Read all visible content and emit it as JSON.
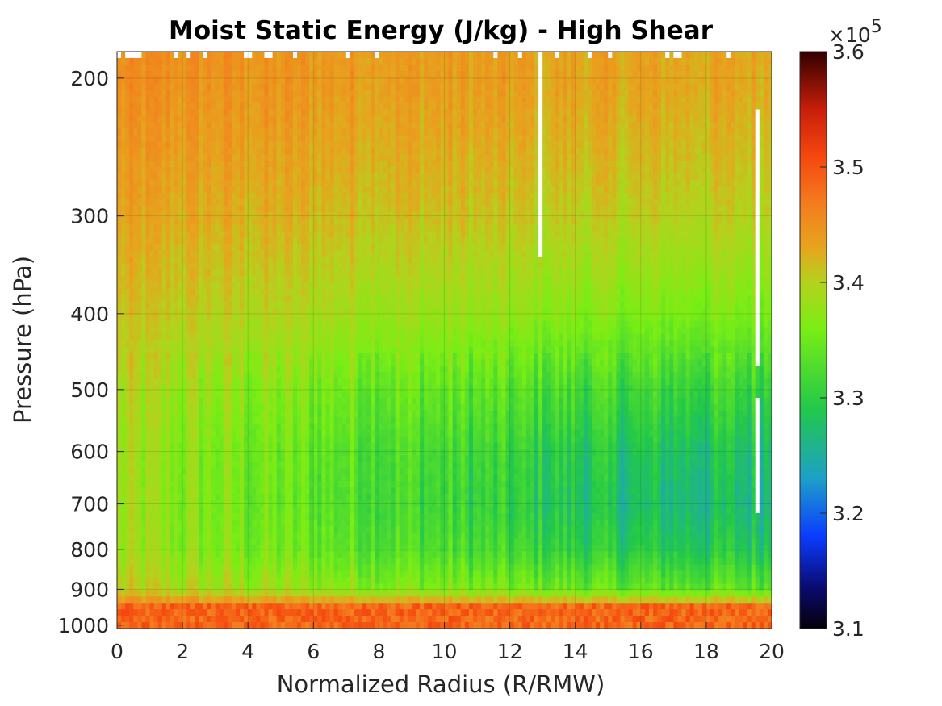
{
  "chart_data": {
    "type": "heatmap",
    "title": "Moist Static Energy (J/kg) - High Shear",
    "xlabel": "Normalized Radius (R/RMW)",
    "ylabel": "Pressure (hPa)",
    "xlim": [
      0,
      20
    ],
    "ylim": [
      1010,
      185
    ],
    "y_scale": "log",
    "x_ticks": [
      0,
      2,
      4,
      6,
      8,
      10,
      12,
      14,
      16,
      18,
      20
    ],
    "y_ticks": [
      200,
      300,
      400,
      500,
      600,
      700,
      800,
      900,
      1000
    ],
    "colorbar": {
      "multiplier_text": "×10",
      "multiplier_exponent": "5",
      "range": [
        3.1,
        3.6
      ],
      "ticks": [
        3.1,
        3.2,
        3.3,
        3.4,
        3.5,
        3.6
      ],
      "colormap": "jet-like (black-blue-cyan-green-yellow-orange-red-dark red)"
    },
    "grid": true,
    "value_units": "J/kg",
    "profile": {
      "pressure_hPa": [
        200,
        300,
        400,
        500,
        600,
        700,
        800,
        900,
        950,
        1000
      ],
      "mse_inner_x1e5": [
        3.45,
        3.43,
        3.41,
        3.39,
        3.38,
        3.38,
        3.38,
        3.4,
        3.47,
        3.48
      ],
      "mse_outer_x1e5": [
        3.43,
        3.4,
        3.36,
        3.31,
        3.28,
        3.27,
        3.29,
        3.34,
        3.46,
        3.47
      ]
    },
    "missing_data_note": "white gaps near top and around R/RMW 13, 15-17, 19.5"
  }
}
